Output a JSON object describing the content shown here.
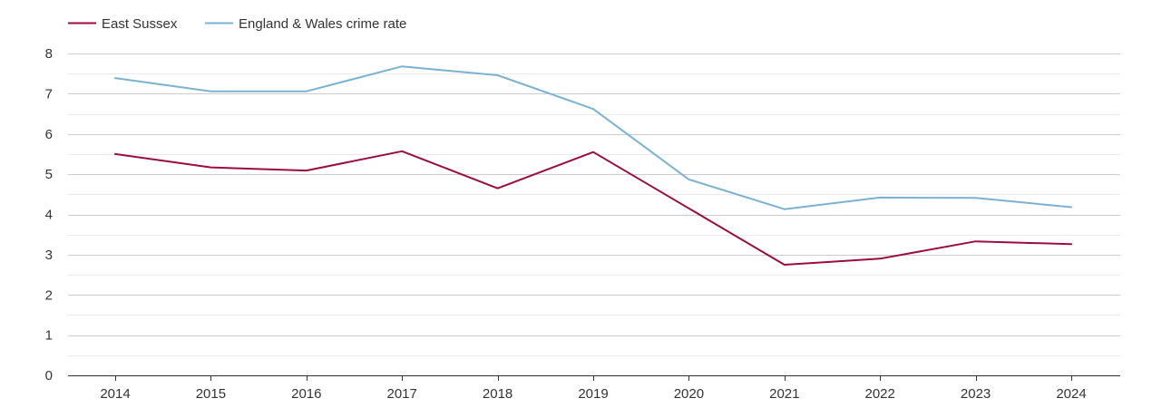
{
  "chart_data": {
    "type": "line",
    "title": "",
    "xlabel": "",
    "ylabel": "",
    "categories": [
      "2014",
      "2015",
      "2016",
      "2017",
      "2018",
      "2019",
      "2020",
      "2021",
      "2022",
      "2023",
      "2024"
    ],
    "ylim": [
      0,
      8
    ],
    "yticks": [
      0,
      1,
      2,
      3,
      4,
      5,
      6,
      7,
      8
    ],
    "grid": true,
    "legend_position": "top-left",
    "series": [
      {
        "name": "East Sussex",
        "color": "#9b0d3a",
        "values": [
          5.5,
          5.17,
          5.09,
          5.57,
          4.65,
          5.55,
          4.15,
          2.75,
          2.9,
          3.33,
          3.26
        ]
      },
      {
        "name": "England & Wales crime rate",
        "color": "#79b2d3",
        "values": [
          7.39,
          7.06,
          7.06,
          7.68,
          7.46,
          6.62,
          4.87,
          4.13,
          4.42,
          4.41,
          4.18
        ]
      }
    ]
  }
}
